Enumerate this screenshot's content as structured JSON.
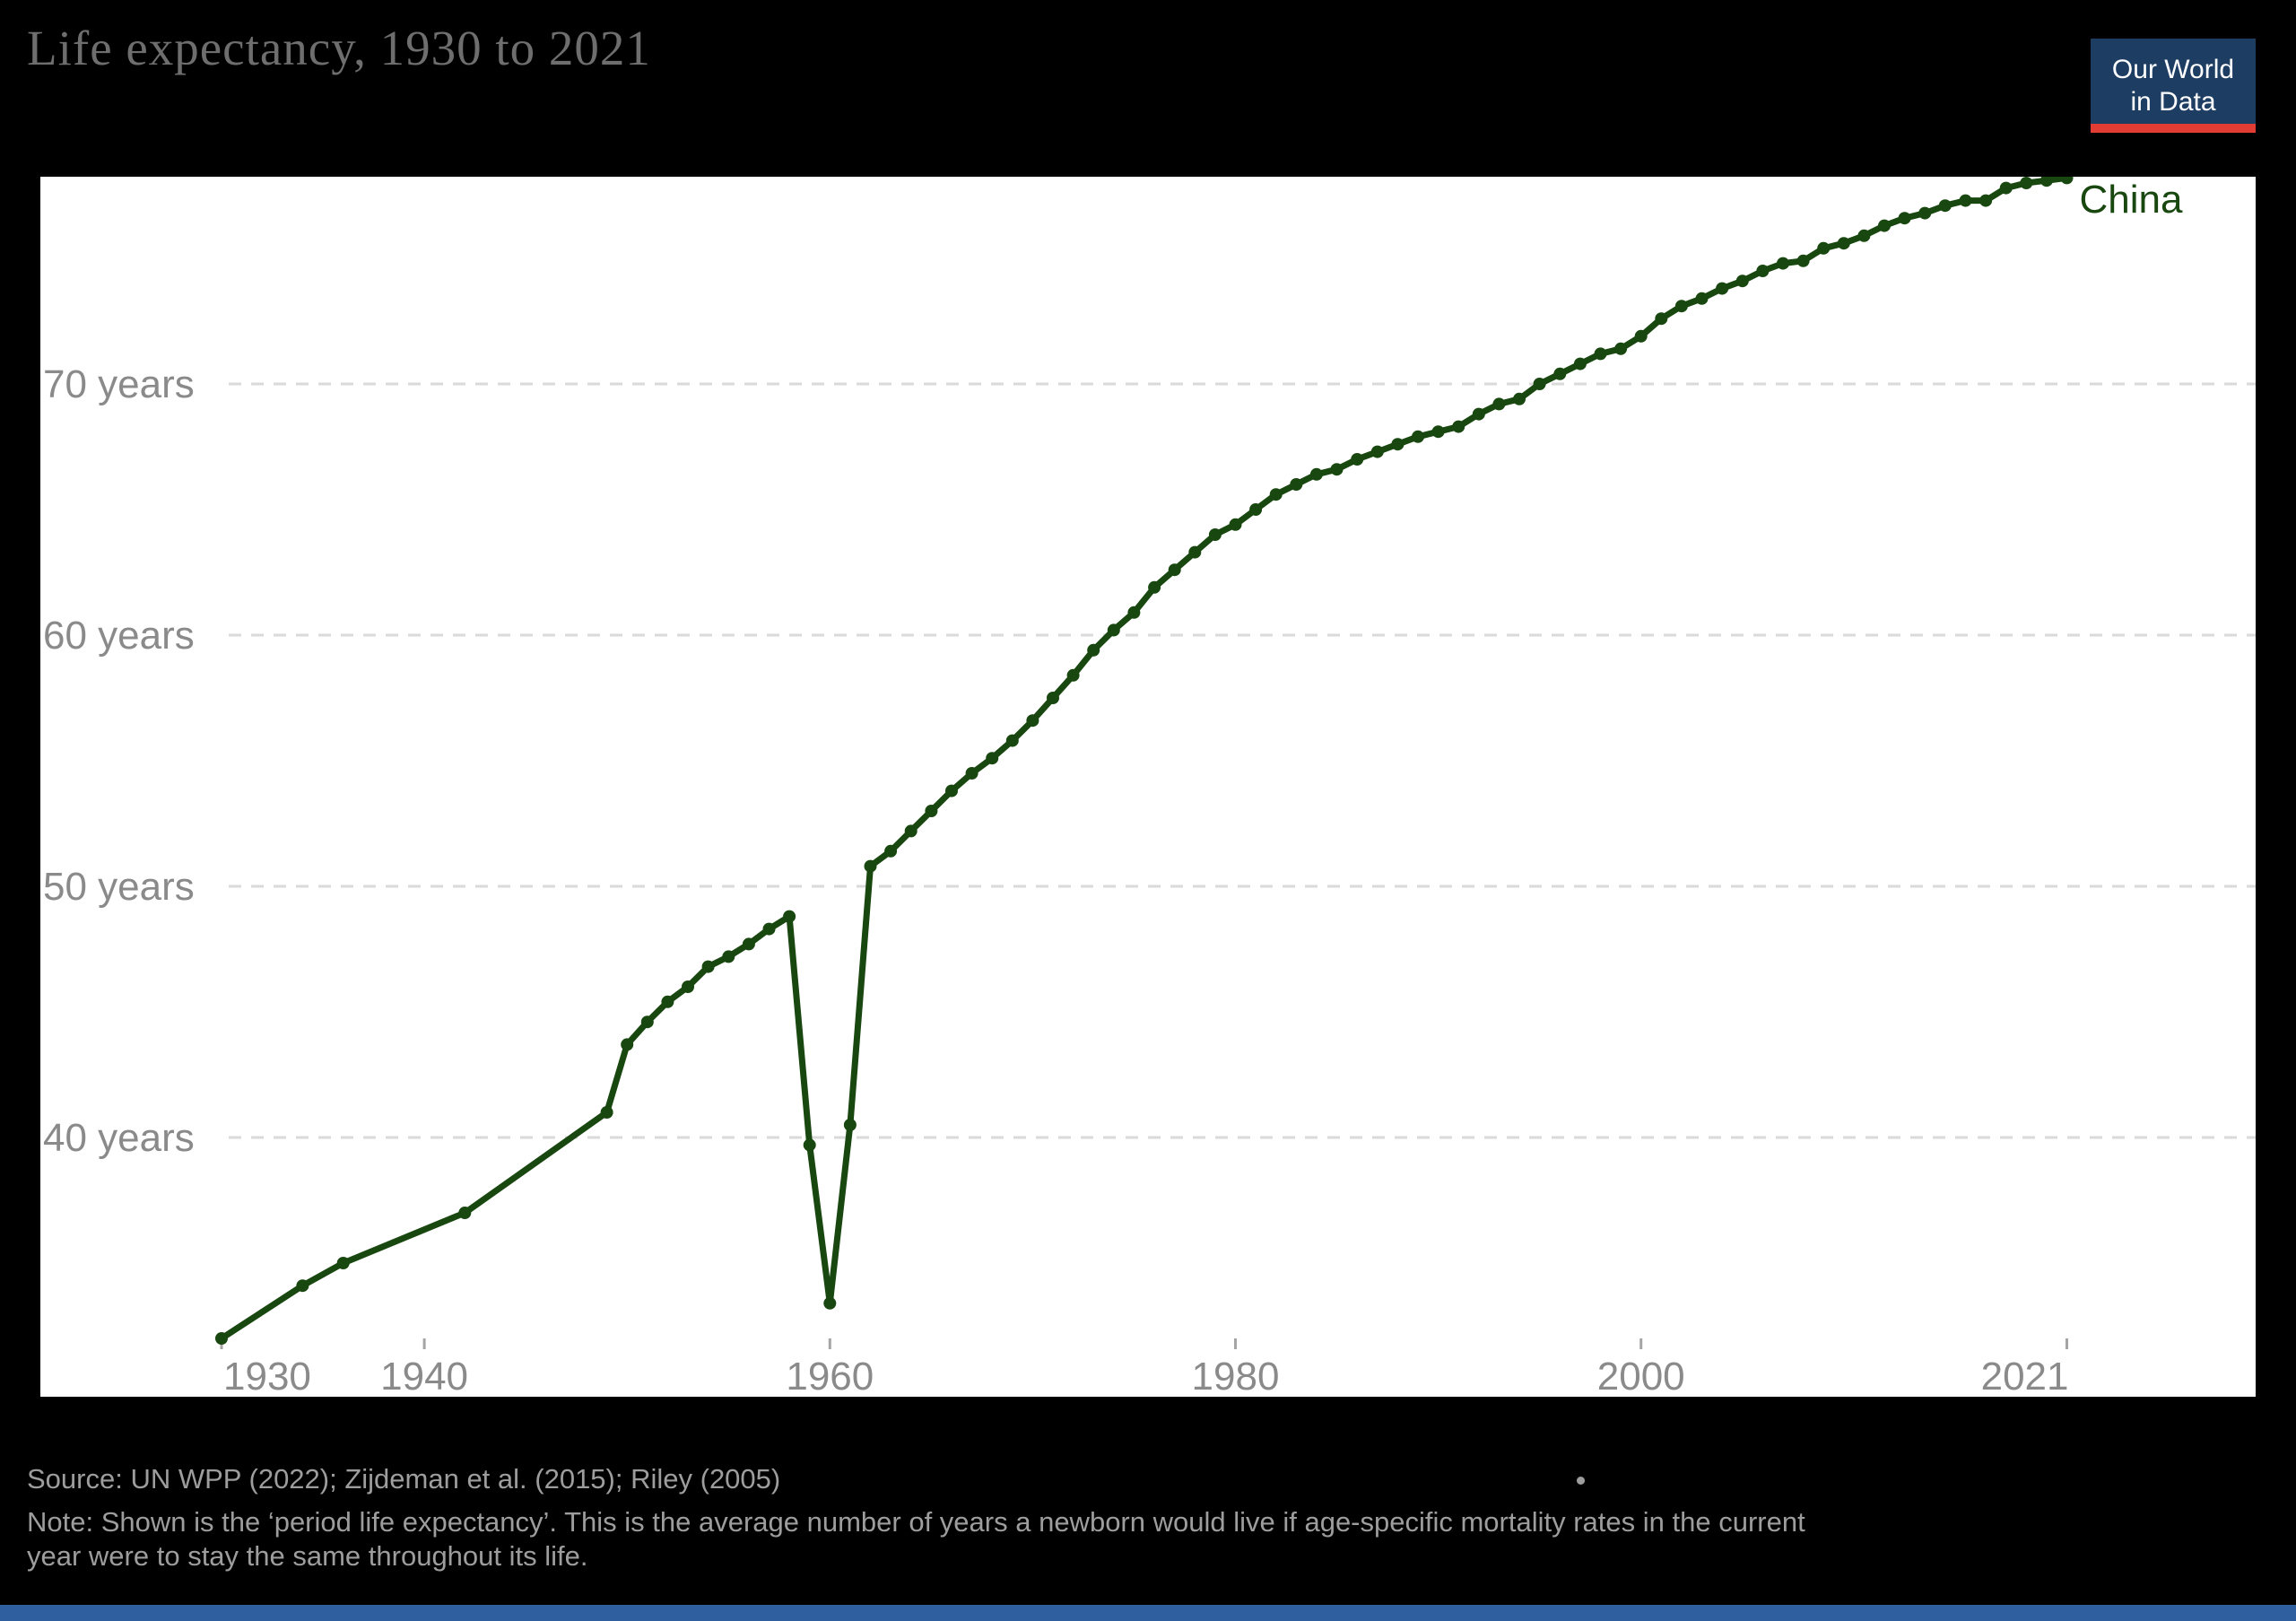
{
  "header": {
    "title": "Life expectancy, 1930 to 2021"
  },
  "logo": {
    "line1": "Our World",
    "line2": "in Data",
    "bg_color": "#1d3d63",
    "accent_color": "#e23d34"
  },
  "chart_data": {
    "type": "line",
    "title": "Life expectancy, 1930 to 2021",
    "xlabel": "",
    "ylabel": "",
    "xlim": [
      1930,
      2021
    ],
    "ylim": [
      32,
      78.3
    ],
    "grid": "horizontal-dashed",
    "grid_color": "#dadada",
    "axis_label_color": "#8a8a8a",
    "tick_color": "#a5a5a5",
    "x_ticks": [
      1930,
      1940,
      1960,
      1980,
      2000,
      2021
    ],
    "x_tick_labels": [
      "1930",
      "1940",
      "1960",
      "1980",
      "2000",
      "2021"
    ],
    "y_ticks": [
      40,
      50,
      60,
      70
    ],
    "y_tick_labels": [
      "40 years",
      "50 years",
      "60 years",
      "70 years"
    ],
    "series": [
      {
        "name": "China",
        "color": "#18470f",
        "points": [
          [
            1930,
            32.0
          ],
          [
            1934,
            34.1
          ],
          [
            1936,
            35.0
          ],
          [
            1942,
            37.0
          ],
          [
            1949,
            41.0
          ],
          [
            1950,
            43.7
          ],
          [
            1951,
            44.6
          ],
          [
            1952,
            45.4
          ],
          [
            1953,
            46.0
          ],
          [
            1954,
            46.8
          ],
          [
            1955,
            47.2
          ],
          [
            1956,
            47.7
          ],
          [
            1957,
            48.3
          ],
          [
            1958,
            48.8
          ],
          [
            1959,
            39.7
          ],
          [
            1960,
            33.4
          ],
          [
            1961,
            40.5
          ],
          [
            1962,
            50.8
          ],
          [
            1963,
            51.4
          ],
          [
            1964,
            52.2
          ],
          [
            1965,
            53.0
          ],
          [
            1966,
            53.8
          ],
          [
            1967,
            54.5
          ],
          [
            1968,
            55.1
          ],
          [
            1969,
            55.8
          ],
          [
            1970,
            56.6
          ],
          [
            1971,
            57.5
          ],
          [
            1972,
            58.4
          ],
          [
            1973,
            59.4
          ],
          [
            1974,
            60.2
          ],
          [
            1975,
            60.9
          ],
          [
            1976,
            61.9
          ],
          [
            1977,
            62.6
          ],
          [
            1978,
            63.3
          ],
          [
            1979,
            64.0
          ],
          [
            1980,
            64.4
          ],
          [
            1981,
            65.0
          ],
          [
            1982,
            65.6
          ],
          [
            1983,
            66.0
          ],
          [
            1984,
            66.4
          ],
          [
            1985,
            66.6
          ],
          [
            1986,
            67.0
          ],
          [
            1987,
            67.3
          ],
          [
            1988,
            67.6
          ],
          [
            1989,
            67.9
          ],
          [
            1990,
            68.1
          ],
          [
            1991,
            68.3
          ],
          [
            1992,
            68.8
          ],
          [
            1993,
            69.2
          ],
          [
            1994,
            69.4
          ],
          [
            1995,
            70.0
          ],
          [
            1996,
            70.4
          ],
          [
            1997,
            70.8
          ],
          [
            1998,
            71.2
          ],
          [
            1999,
            71.4
          ],
          [
            2000,
            71.9
          ],
          [
            2001,
            72.6
          ],
          [
            2002,
            73.1
          ],
          [
            2003,
            73.4
          ],
          [
            2004,
            73.8
          ],
          [
            2005,
            74.1
          ],
          [
            2006,
            74.5
          ],
          [
            2007,
            74.8
          ],
          [
            2008,
            74.9
          ],
          [
            2009,
            75.4
          ],
          [
            2010,
            75.6
          ],
          [
            2011,
            75.9
          ],
          [
            2012,
            76.3
          ],
          [
            2013,
            76.6
          ],
          [
            2014,
            76.8
          ],
          [
            2015,
            77.1
          ],
          [
            2016,
            77.3
          ],
          [
            2017,
            77.3
          ],
          [
            2018,
            77.8
          ],
          [
            2019,
            78.0
          ],
          [
            2020,
            78.1
          ],
          [
            2021,
            78.2
          ]
        ]
      }
    ],
    "end_label": "China"
  },
  "footer": {
    "source": "Source: UN WPP (2022); Zijdeman et al. (2015); Riley (2005)",
    "note_line1": "Note: Shown is the ‘period life expectancy’. This is the average number of years a newborn would live if age-specific mortality rates in the current",
    "note_line2": "year were to stay the same throughout its life."
  }
}
